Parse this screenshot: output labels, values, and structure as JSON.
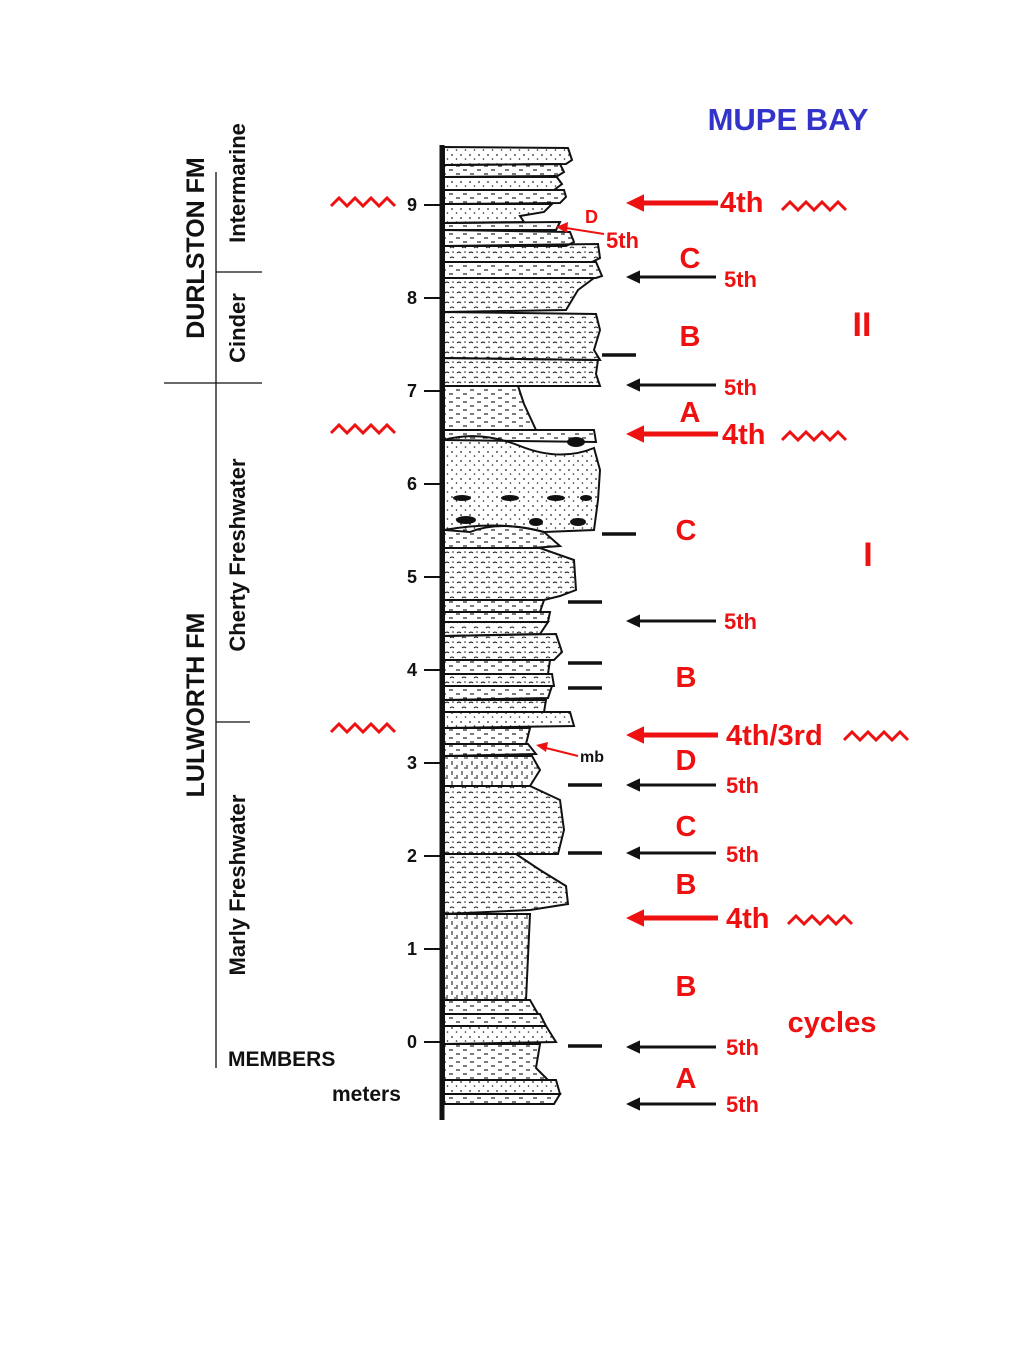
{
  "title": "MUPE  BAY",
  "formations": [
    {
      "id": "durlston",
      "name": "DURLSTON  FM"
    },
    {
      "id": "lulworth",
      "name": "LULWORTH   FM"
    }
  ],
  "members": [
    {
      "id": "intermarine",
      "name": "Intermarine"
    },
    {
      "id": "cinder",
      "name": "Cinder"
    },
    {
      "id": "cherty-freshwater",
      "name": "Cherty   Freshwater"
    },
    {
      "id": "marly-freshwater",
      "name": "Marly   Freshwater"
    }
  ],
  "members_label": "MEMBERS",
  "meters_label": "meters",
  "scale_ticks": [
    "0",
    "1",
    "2",
    "3",
    "4",
    "5",
    "6",
    "7",
    "8",
    "9"
  ],
  "sequence_boundaries": [
    {
      "id": "fourth-top",
      "label": "4th",
      "meter": 9.0
    },
    {
      "id": "fourth-mid",
      "label": "4th",
      "meter": 6.5
    },
    {
      "id": "fourth-third",
      "label": "4th/3rd",
      "meter": 3.3
    },
    {
      "id": "fourth-low",
      "label": "4th",
      "meter": 1.4
    }
  ],
  "fifth_order_marks": [
    {
      "id": "5th-a",
      "label": "5th",
      "meter": 8.25
    },
    {
      "id": "5th-b",
      "label": "5th",
      "meter": 7.0
    },
    {
      "id": "5th-c",
      "label": "5th",
      "meter": 4.5
    },
    {
      "id": "5th-d",
      "label": "5th",
      "meter": 2.75
    },
    {
      "id": "5th-e",
      "label": "5th",
      "meter": 2.0
    },
    {
      "id": "5th-f",
      "label": "5th",
      "meter": -0.05
    },
    {
      "id": "5th-g",
      "label": "5th",
      "meter": -0.65
    }
  ],
  "cycle_letters": [
    {
      "id": "c-top",
      "label": "C"
    },
    {
      "id": "b-top",
      "label": "B"
    },
    {
      "id": "a-top",
      "label": "A"
    },
    {
      "id": "c-mid",
      "label": "C"
    },
    {
      "id": "b-mid",
      "label": "B"
    },
    {
      "id": "d-low",
      "label": "D"
    },
    {
      "id": "c-low",
      "label": "C"
    },
    {
      "id": "b-low1",
      "label": "B"
    },
    {
      "id": "b-low2",
      "label": "B"
    },
    {
      "id": "a-low",
      "label": "A"
    }
  ],
  "d_annotation": {
    "letter": "D",
    "label": "5th"
  },
  "mb_label": "mb",
  "cycle_sets": [
    {
      "id": "set-ii",
      "label": "II"
    },
    {
      "id": "set-i",
      "label": "I"
    }
  ],
  "cycles_label": "cycles",
  "colors": {
    "title": "#3333cc",
    "annotation": "#ee1111",
    "ink": "#111111",
    "background": "#ffffff"
  }
}
